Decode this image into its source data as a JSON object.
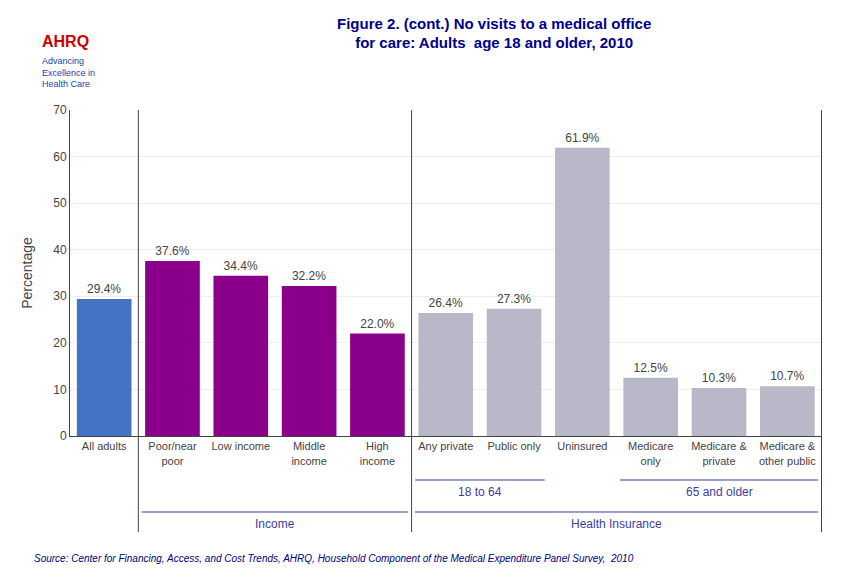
{
  "chart_data": {
    "type": "bar",
    "title": "Figure 2. (cont.) No visits to a medical office\nfor care: Adults  age 18 and older, 2010",
    "ylabel": "Percentage",
    "categories": [
      "All adults",
      "Poor/near\npoor",
      "Low income",
      "Middle\nincome",
      "High\nincome",
      "Any private",
      "Public only",
      "Uninsured",
      "Medicare\nonly",
      "Medicare &\nprivate",
      "Medicare &\nother public"
    ],
    "values": [
      29.4,
      37.6,
      34.4,
      32.2,
      22.0,
      26.4,
      27.3,
      61.9,
      12.5,
      10.3,
      10.7
    ],
    "value_labels": [
      "29.4%",
      "37.6%",
      "34.4%",
      "32.2%",
      "22.0%",
      "26.4%",
      "27.3%",
      "61.9%",
      "12.5%",
      "10.3%",
      "10.7%"
    ],
    "data_labels": true,
    "colors": [
      "#4472C4",
      "#8B008B",
      "#8B008B",
      "#8B008B",
      "#8B008B",
      "#B8B8C8",
      "#B8B8C8",
      "#B8B8C8",
      "#B8B8C8",
      "#B8B8C8",
      "#B8B8C8"
    ],
    "ylim": [
      0,
      70
    ],
    "yticks": [
      0,
      10,
      20,
      30,
      40,
      50,
      60,
      70
    ],
    "grid": true,
    "annotations": [
      "Income",
      "18 to 64",
      "Health Insurance",
      "65 and older",
      "Source: Center for Financing, Access, and Cost Trends, AHRQ, Household Component of the Medical Expenditure Panel Survey,  2010",
      "AHRQ",
      "Advancing\nExcellence in\nHealth Care"
    ]
  }
}
